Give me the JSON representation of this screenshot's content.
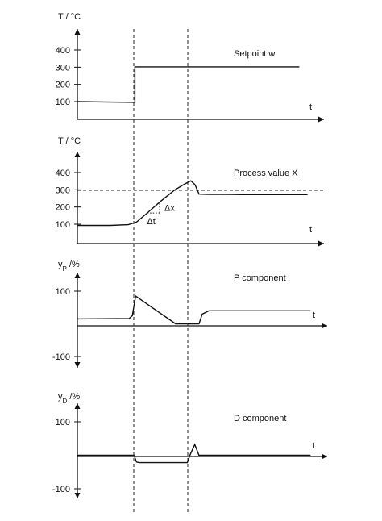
{
  "chart_data": [
    {
      "type": "line",
      "title": "Setpoint w",
      "ylabel": "T / °C",
      "xlabel": "t",
      "yticks": [
        100,
        200,
        300,
        400
      ],
      "ylim": [
        0,
        520
      ],
      "xlim": [
        0,
        300
      ],
      "grid": false,
      "series": [
        {
          "name": "",
          "x": [
            0,
            70,
            70,
            270
          ],
          "y": [
            100,
            96,
            302,
            302
          ]
        }
      ]
    },
    {
      "type": "line",
      "title": "Process value X",
      "ylabel": "T / °C",
      "xlabel": "t",
      "yticks": [
        100,
        200,
        300,
        400
      ],
      "ylim": [
        0,
        520
      ],
      "xlim": [
        0,
        300
      ],
      "grid": false,
      "annotations": [
        "Δx",
        "Δt"
      ],
      "series": [
        {
          "name": "",
          "x": [
            0,
            40,
            62,
            72,
            85,
            100,
            118,
            130,
            138,
            143,
            148,
            160,
            175,
            200,
            235,
            280
          ],
          "y": [
            93,
            93,
            97,
            112,
            165,
            228,
            298,
            332,
            352,
            330,
            275,
            273,
            274,
            272,
            272,
            272
          ]
        }
      ]
    },
    {
      "type": "line",
      "title": "P component",
      "ylabel": "yP /%",
      "ylabel_sub": "P",
      "xlabel": "t",
      "yticks": [
        -100,
        100
      ],
      "ylim": [
        -130,
        140
      ],
      "xlim": [
        0,
        300
      ],
      "grid": false,
      "series": [
        {
          "name": "",
          "x": [
            0,
            62,
            66,
            70,
            118,
            146,
            150,
            158,
            280
          ],
          "y": [
            15,
            16,
            25,
            85,
            0,
            0,
            30,
            40,
            40
          ]
        }
      ]
    },
    {
      "type": "line",
      "title": "D component",
      "ylabel": "yD /%",
      "ylabel_sub": "D",
      "xlabel": "t",
      "yticks": [
        -100,
        100
      ],
      "ylim": [
        -130,
        140
      ],
      "xlim": [
        0,
        300
      ],
      "grid": false,
      "series": [
        {
          "name": "",
          "x": [
            0,
            68,
            71,
            74,
            132,
            136,
            141,
            146,
            150,
            280
          ],
          "y": [
            0,
            0,
            -20,
            -22,
            -22,
            5,
            32,
            0,
            0,
            0
          ]
        }
      ]
    }
  ]
}
